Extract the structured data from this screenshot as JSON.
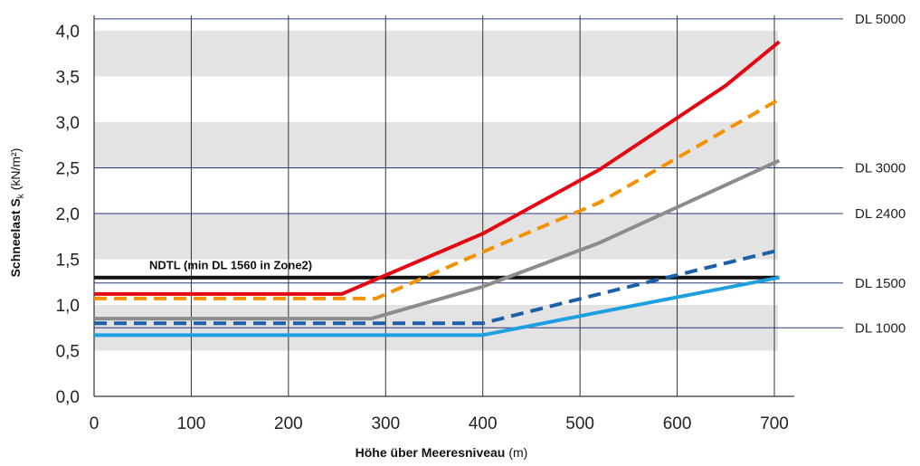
{
  "chart_data": {
    "type": "line",
    "xlabel_bold": "Höhe über Meeresniveau",
    "xlabel_unit": "(m)",
    "ylabel_bold": "Schneelast S",
    "ylabel_sub": "k",
    "ylabel_unit": "(kN/m²)",
    "xlim": [
      0,
      720
    ],
    "ylim": [
      0,
      4.0
    ],
    "x_ticks": [
      "0",
      "100",
      "200",
      "300",
      "400",
      "500",
      "600",
      "700"
    ],
    "y_ticks": [
      "0,0",
      "0,5",
      "1,0",
      "1,5",
      "2,0",
      "2,5",
      "3,0",
      "3,5",
      "4,0"
    ],
    "gray_bands": [
      [
        0.5,
        1.0
      ],
      [
        1.5,
        2.0
      ],
      [
        2.5,
        3.0
      ],
      [
        3.5,
        4.0
      ]
    ],
    "reference_lines": [
      {
        "label": "DL 5000",
        "value": 4.13
      },
      {
        "label": "DL 3000",
        "value": 2.5
      },
      {
        "label": "DL 2400",
        "value": 2.0
      },
      {
        "label": "DL 1500",
        "value": 1.24
      },
      {
        "label": "DL 1000",
        "value": 0.75
      }
    ],
    "annotation": {
      "text": "NDTL (min DL 1560 in Zone2)",
      "value": 1.3
    },
    "series": [
      {
        "color": "#e30613",
        "dash": false,
        "x": [
          0,
          255,
          400,
          520,
          650,
          705
        ],
        "y": [
          1.12,
          1.12,
          1.78,
          2.48,
          3.4,
          3.88
        ]
      },
      {
        "color": "#f39200",
        "dash": true,
        "x": [
          0,
          290,
          400,
          520,
          705
        ],
        "y": [
          1.07,
          1.07,
          1.58,
          2.12,
          3.25
        ]
      },
      {
        "color": "#8c8c8c",
        "dash": false,
        "x": [
          0,
          285,
          400,
          520,
          705
        ],
        "y": [
          0.85,
          0.85,
          1.2,
          1.68,
          2.58
        ]
      },
      {
        "color": "#1d5fa8",
        "dash": true,
        "x": [
          0,
          400,
          520,
          705
        ],
        "y": [
          0.8,
          0.8,
          1.12,
          1.6
        ]
      },
      {
        "color": "#1ea0e0",
        "dash": false,
        "x": [
          0,
          400,
          520,
          705
        ],
        "y": [
          0.67,
          0.67,
          0.92,
          1.3
        ]
      }
    ]
  }
}
